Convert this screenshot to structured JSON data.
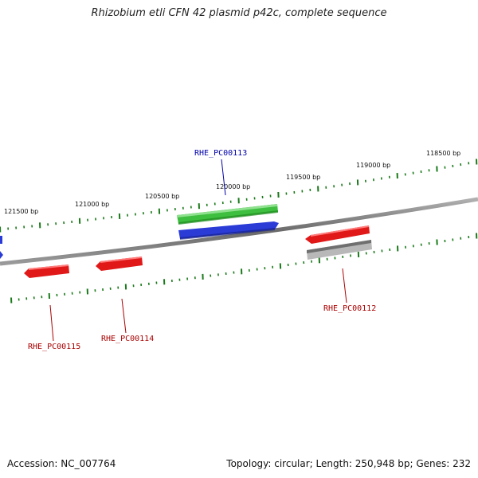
{
  "title": "Rhizobium etli CFN 42 plasmid p42c, complete sequence",
  "accession_text": "Accession: NC_007764",
  "summary_text": "Topology: circular; Length: 250,948 bp; Genes: 232",
  "colors": {
    "backbone": "#808080",
    "tick": "#1a7a1a",
    "forward_gene": "#2a3bd6",
    "reverse_gene": "#e01818",
    "rna_gene": "#3fbf3f",
    "pseudo_gene": "#b8b8b8",
    "label_blue": "#0000aa",
    "label_red": "#aa0000"
  },
  "scale_labels": [
    {
      "text": "121500 bp"
    },
    {
      "text": "121000 bp"
    },
    {
      "text": "120500 bp"
    },
    {
      "text": "120000 bp"
    },
    {
      "text": "119500 bp"
    },
    {
      "text": "119000 bp"
    },
    {
      "text": "118500 bp"
    }
  ],
  "gene_labels": [
    {
      "name": "RHE_PC00113",
      "color": "blue"
    },
    {
      "name": "RHE_PC00115",
      "color": "red"
    },
    {
      "name": "RHE_PC00114",
      "color": "red"
    },
    {
      "name": "RHE_PC00112",
      "color": "red"
    }
  ]
}
